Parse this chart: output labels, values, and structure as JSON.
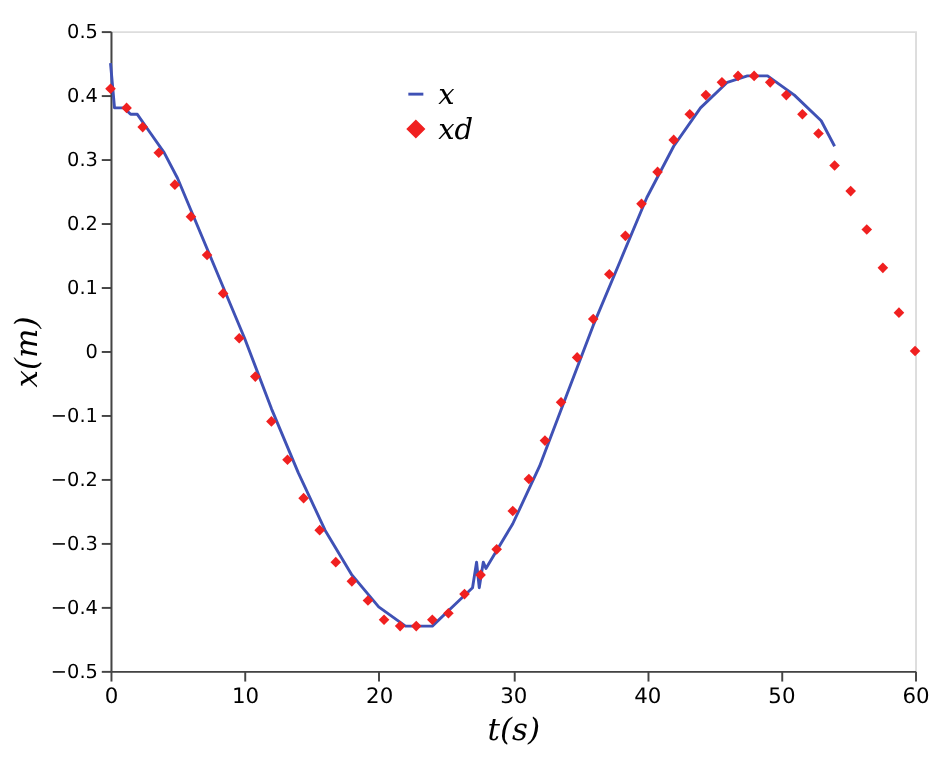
{
  "chart_data": {
    "type": "line",
    "xlabel": "t(s)",
    "ylabel": "x(m)",
    "xlim": [
      0,
      60
    ],
    "ylim": [
      -0.5,
      0.5
    ],
    "xticks": [
      0,
      10,
      20,
      30,
      40,
      50,
      60
    ],
    "yticks": [
      -0.5,
      -0.4,
      -0.3,
      -0.2,
      -0.1,
      0,
      0.1,
      0.2,
      0.3,
      0.4,
      0.5
    ],
    "grid": false,
    "legend": "top",
    "series": [
      {
        "name": "x",
        "color": "#3f51b5",
        "marker": "none",
        "line_style": "solid",
        "x": [
          0,
          0.3,
          1,
          1.5,
          2,
          3,
          4,
          5,
          6,
          8,
          10,
          12,
          14,
          16,
          18,
          20,
          22,
          23,
          24,
          26,
          27,
          27.3,
          27.5,
          27.8,
          28,
          30,
          32,
          34,
          36,
          38,
          40,
          42,
          44,
          46,
          47.5,
          49,
          51,
          53,
          54
        ],
        "values": [
          0.45,
          0.38,
          0.38,
          0.37,
          0.37,
          0.34,
          0.31,
          0.27,
          0.22,
          0.12,
          0.02,
          -0.09,
          -0.19,
          -0.28,
          -0.35,
          -0.4,
          -0.43,
          -0.43,
          -0.43,
          -0.39,
          -0.37,
          -0.33,
          -0.37,
          -0.33,
          -0.34,
          -0.27,
          -0.18,
          -0.07,
          0.04,
          0.14,
          0.24,
          0.32,
          0.38,
          0.42,
          0.43,
          0.43,
          0.4,
          0.36,
          0.32
        ]
      },
      {
        "name": "xd",
        "type": "scatter",
        "color": "#f02020",
        "marker": "diamond",
        "x": [
          0,
          1.2,
          2.4,
          3.6,
          4.8,
          6,
          7.2,
          8.4,
          9.6,
          10.8,
          12,
          13.2,
          14.4,
          15.6,
          16.8,
          18,
          19.2,
          20.4,
          21.6,
          22.8,
          24,
          25.2,
          26.4,
          27.6,
          28.8,
          30,
          31.2,
          32.4,
          33.6,
          34.8,
          36,
          37.2,
          38.4,
          39.6,
          40.8,
          42,
          43.2,
          44.4,
          45.6,
          46.8,
          48,
          49.2,
          50.4,
          51.6,
          52.8,
          54,
          55.2,
          56.4,
          57.6,
          58.8,
          60
        ],
        "values": [
          0.41,
          0.38,
          0.35,
          0.31,
          0.26,
          0.21,
          0.15,
          0.09,
          0.02,
          -0.04,
          -0.11,
          -0.17,
          -0.23,
          -0.28,
          -0.33,
          -0.36,
          -0.39,
          -0.42,
          -0.43,
          -0.43,
          -0.42,
          -0.41,
          -0.38,
          -0.35,
          -0.31,
          -0.25,
          -0.2,
          -0.14,
          -0.08,
          -0.01,
          0.05,
          0.12,
          0.18,
          0.23,
          0.28,
          0.33,
          0.37,
          0.4,
          0.42,
          0.43,
          0.43,
          0.42,
          0.4,
          0.37,
          0.34,
          0.29,
          0.25,
          0.19,
          0.13,
          0.06,
          0.0
        ]
      }
    ]
  }
}
